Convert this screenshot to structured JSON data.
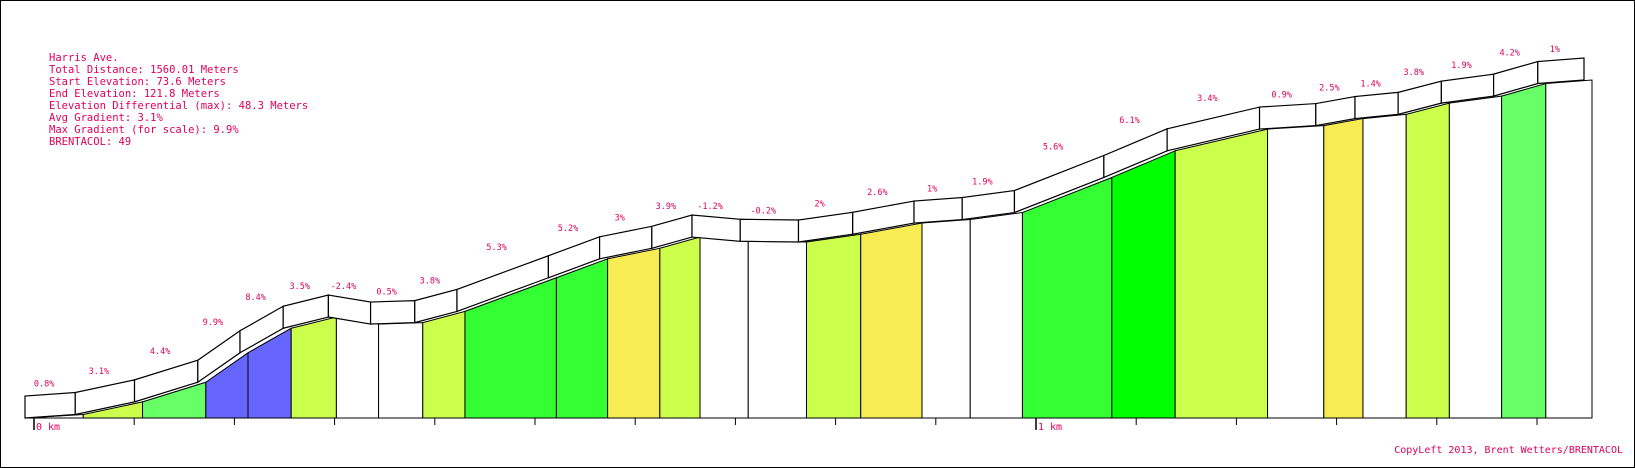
{
  "info": {
    "name": "Harris Ave.",
    "total_distance": "Total Distance: 1560.01 Meters",
    "start_elevation": "Start Elevation: 73.6 Meters",
    "end_elevation": "End Elevation: 121.8 Meters",
    "elevation_differential": "Elevation Differential (max): 48.3 Meters",
    "avg_gradient": "Avg Gradient: 3.1%",
    "max_gradient": "Max Gradient (for scale): 9.9%",
    "brentacol": "BRENTACOL: 49"
  },
  "copyleft": "CopyLeft 2013, Brent Wetters/BRENTACOL",
  "chart_data": {
    "type": "area",
    "title": "",
    "xlabel": "",
    "ylabel": "",
    "x_unit": "km",
    "x_tick_labels": [
      "0 km",
      "1 km"
    ],
    "total_distance_km": 1.56,
    "y_range": [
      73.6,
      121.8
    ],
    "grid": false,
    "legend": "none",
    "segments": [
      {
        "start_km": 0.0,
        "end_km": 0.058,
        "gradient": "0.8%"
      },
      {
        "start_km": 0.058,
        "end_km": 0.117,
        "gradient": "3.1%"
      },
      {
        "start_km": 0.117,
        "end_km": 0.18,
        "gradient": "4.4%"
      },
      {
        "start_km": 0.18,
        "end_km": 0.222,
        "gradient": "9.9%"
      },
      {
        "start_km": 0.222,
        "end_km": 0.265,
        "gradient": "8.4%"
      },
      {
        "start_km": 0.265,
        "end_km": 0.31,
        "gradient": "3.5%"
      },
      {
        "start_km": 0.31,
        "end_km": 0.352,
        "gradient": "-2.4%"
      },
      {
        "start_km": 0.352,
        "end_km": 0.396,
        "gradient": "0.5%"
      },
      {
        "start_km": 0.396,
        "end_km": 0.438,
        "gradient": "3.8%"
      },
      {
        "start_km": 0.438,
        "end_km": 0.529,
        "gradient": "5.3%"
      },
      {
        "start_km": 0.529,
        "end_km": 0.58,
        "gradient": "5.2%"
      },
      {
        "start_km": 0.58,
        "end_km": 0.632,
        "gradient": "3%"
      },
      {
        "start_km": 0.632,
        "end_km": 0.672,
        "gradient": "3.9%"
      },
      {
        "start_km": 0.672,
        "end_km": 0.72,
        "gradient": "-1.2%"
      },
      {
        "start_km": 0.72,
        "end_km": 0.778,
        "gradient": "-0.2%"
      },
      {
        "start_km": 0.778,
        "end_km": 0.832,
        "gradient": "2%"
      },
      {
        "start_km": 0.832,
        "end_km": 0.893,
        "gradient": "2.6%"
      },
      {
        "start_km": 0.893,
        "end_km": 0.941,
        "gradient": "1%"
      },
      {
        "start_km": 0.941,
        "end_km": 0.993,
        "gradient": "1.9%"
      },
      {
        "start_km": 0.993,
        "end_km": 1.082,
        "gradient": "5.6%"
      },
      {
        "start_km": 1.082,
        "end_km": 1.145,
        "gradient": "6.1%"
      },
      {
        "start_km": 1.145,
        "end_km": 1.237,
        "gradient": "3.4%"
      },
      {
        "start_km": 1.237,
        "end_km": 1.293,
        "gradient": "0.9%"
      },
      {
        "start_km": 1.293,
        "end_km": 1.332,
        "gradient": "2.5%"
      },
      {
        "start_km": 1.332,
        "end_km": 1.375,
        "gradient": "1.4%"
      },
      {
        "start_km": 1.375,
        "end_km": 1.418,
        "gradient": "3.8%"
      },
      {
        "start_km": 1.418,
        "end_km": 1.47,
        "gradient": "1.9%"
      },
      {
        "start_km": 1.47,
        "end_km": 1.514,
        "gradient": "4.2%"
      },
      {
        "start_km": 1.514,
        "end_km": 1.56,
        "gradient": "1%"
      }
    ],
    "elevations_m": [
      73.6,
      74.1,
      75.9,
      78.7,
      82.9,
      86.4,
      88.0,
      87.0,
      87.2,
      88.8,
      93.6,
      96.3,
      97.8,
      99.4,
      98.8,
      98.7,
      99.8,
      101.4,
      101.9,
      102.9,
      107.9,
      111.7,
      114.8,
      115.3,
      116.3,
      116.9,
      118.5,
      119.5,
      121.3,
      121.8
    ],
    "gradient_colors": {
      "negative_or_flat": "#ffffff",
      "2_to_4": "#ccff4c",
      "2.5_to_3.1_yellow": "#f8ec55",
      "4_to_5": "#66ff66",
      "5_to_7": "#33ff33",
      "6_plus_bright": "#00ff00",
      "8_plus": "#6666ff"
    }
  }
}
